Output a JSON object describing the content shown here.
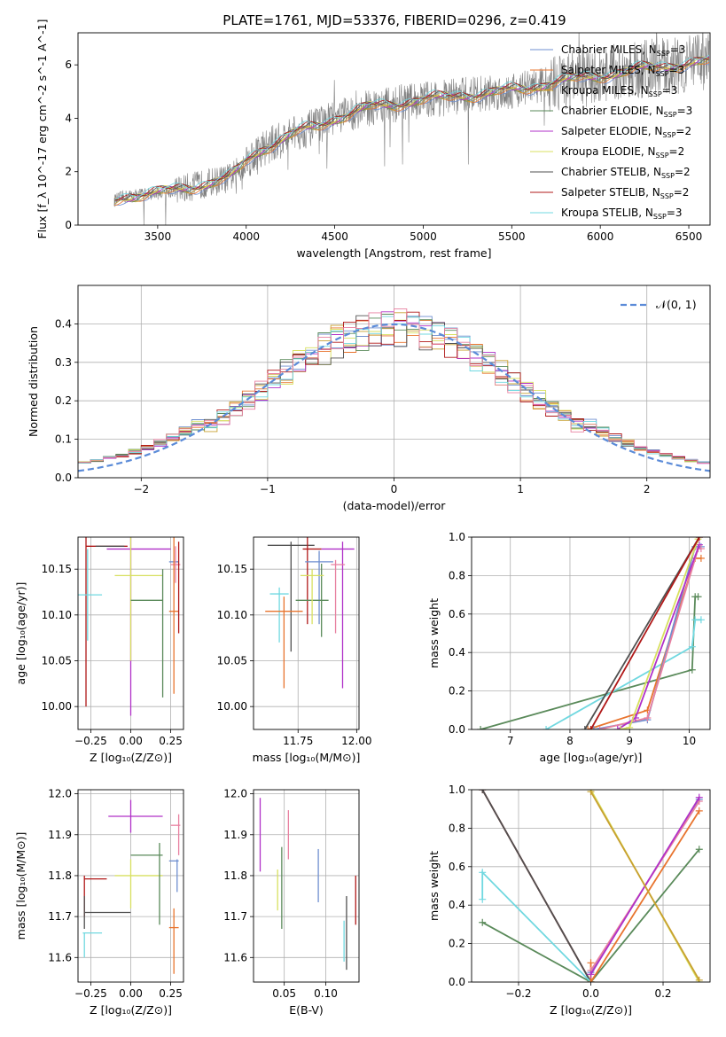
{
  "figure": {
    "title": "PLATE=1761, MJD=53376, FIBERID=0296, z=0.419"
  },
  "colors": {
    "Chabrier MILES": "#6f8fd0",
    "Salpeter MILES": "#e8742e",
    "Kroupa MILES": "#c8a030",
    "Chabrier ELODIE": "#5a8a5a",
    "Salpeter ELODIE": "#b030c8",
    "Kroupa ELODIE": "#d8e060",
    "Chabrier STELIB": "#505050",
    "Salpeter STELIB": "#b01818",
    "Kroupa STELIB": "#70d8e0",
    "pink": "#e880a0",
    "data": "#808080",
    "normal": "#5b8bd8"
  },
  "chart_data": [
    {
      "id": "spectrum",
      "type": "line",
      "title": "PLATE=1761, MJD=53376, FIBERID=0296, z=0.419",
      "xlabel": "wavelength [Angstrom, rest frame]",
      "ylabel": "Flux [f_λ 10^-17 erg cm^-2 s^-1 A^-1]",
      "xlim": [
        3050,
        6620
      ],
      "ylim": [
        0,
        7.2
      ],
      "xticks": [
        3500,
        4000,
        4500,
        5000,
        5500,
        6000,
        6500
      ],
      "yticks": [
        0,
        2,
        4,
        6
      ],
      "legend_position": "right",
      "legend": [
        {
          "label": "Chabrier MILES, N_SSP=3",
          "color": "#6f8fd0"
        },
        {
          "label": "Salpeter MILES, N_SSP=3",
          "color": "#e8742e"
        },
        {
          "label": "Kroupa MILES, N_SSP=3",
          "color": "#c8a030"
        },
        {
          "label": "Chabrier ELODIE, N_SSP=3",
          "color": "#5a8a5a"
        },
        {
          "label": "Salpeter ELODIE, N_SSP=2",
          "color": "#b030c8"
        },
        {
          "label": "Kroupa ELODIE, N_SSP=2",
          "color": "#d8e060"
        },
        {
          "label": "Chabrier STELIB, N_SSP=2",
          "color": "#505050"
        },
        {
          "label": "Salpeter STELIB, N_SSP=2",
          "color": "#b01818"
        },
        {
          "label": "Kroupa STELIB, N_SSP=3",
          "color": "#70d8e0"
        }
      ],
      "continuum": {
        "x": [
          3250,
          3300,
          3400,
          3500,
          3600,
          3700,
          3800,
          3900,
          3950,
          4000,
          4100,
          4200,
          4300,
          4400,
          4500,
          4600,
          4700,
          4800,
          4900,
          5000,
          5100,
          5200,
          5300,
          5400,
          5500,
          5600,
          5700,
          5800,
          5900,
          6000,
          6100,
          6200,
          6300,
          6400,
          6500,
          6600
        ],
        "y": [
          0.9,
          1.05,
          1.15,
          1.2,
          1.3,
          1.45,
          1.6,
          1.75,
          2.0,
          2.4,
          2.9,
          3.2,
          3.5,
          3.7,
          4.0,
          4.2,
          4.4,
          4.5,
          4.6,
          4.7,
          4.75,
          4.85,
          4.9,
          4.95,
          5.05,
          5.15,
          5.3,
          5.4,
          5.5,
          5.6,
          5.7,
          5.8,
          5.9,
          6.0,
          6.05,
          6.1
        ]
      }
    },
    {
      "id": "residuals",
      "type": "line",
      "xlabel": "(data-model)/error",
      "ylabel": "Normed distribution",
      "xlim": [
        -2.5,
        2.5
      ],
      "ylim": [
        0,
        0.5
      ],
      "xticks": [
        -2,
        -1,
        0,
        1,
        2
      ],
      "yticks": [
        0.0,
        0.1,
        0.2,
        0.3,
        0.4
      ],
      "grid": true,
      "legend_position": "top-right",
      "legend": [
        {
          "label": "𝒩(0, 1)",
          "color": "#5b8bd8"
        }
      ]
    },
    {
      "id": "age-vs-Z",
      "type": "scatter",
      "xlabel": "Z [log10(Z/Z⊙)]",
      "ylabel": "age  [log10(age/yr)]",
      "xlim": [
        -0.33,
        0.33
      ],
      "ylim": [
        9.975,
        10.185
      ],
      "xticks": [
        -0.25,
        0.0,
        0.25
      ],
      "yticks": [
        10.0,
        10.05,
        10.1,
        10.15
      ],
      "grid": true,
      "points": [
        {
          "x": -0.28,
          "y": 10.175,
          "xerr": 0.0,
          "yerr": 0.175,
          "color": "#b01818"
        },
        {
          "x": -0.15,
          "y": 10.175,
          "xerr": 0.13,
          "yerr": 0.0,
          "color": "#b01818"
        },
        {
          "x": -0.27,
          "y": 10.122,
          "xerr": 0.09,
          "yerr": 0.05,
          "color": "#70d8e0"
        },
        {
          "x": -0.13,
          "y": 10.175,
          "xerr": 0.09,
          "yerr": 0.0,
          "color": "#505050"
        },
        {
          "x": 0.05,
          "y": 10.172,
          "xerr": 0.2,
          "yerr": 0.0,
          "color": "#b030c8"
        },
        {
          "x": 0.0,
          "y": 10.12,
          "xerr": 0.0,
          "yerr": 0.13,
          "color": "#b030c8"
        },
        {
          "x": 0.05,
          "y": 10.143,
          "xerr": 0.15,
          "yerr": 0.0,
          "color": "#d8e060"
        },
        {
          "x": 0.0,
          "y": 10.12,
          "xerr": 0.0,
          "yerr": 0.07,
          "color": "#d8e060"
        },
        {
          "x": 0.1,
          "y": 10.116,
          "xerr": 0.1,
          "yerr": 0.0,
          "color": "#5a8a5a"
        },
        {
          "x": 0.2,
          "y": 10.08,
          "xerr": 0.0,
          "yerr": 0.07,
          "color": "#5a8a5a"
        },
        {
          "x": 0.27,
          "y": 10.158,
          "xerr": 0.03,
          "yerr": 0.0,
          "color": "#6f8fd0"
        },
        {
          "x": 0.28,
          "y": 10.155,
          "xerr": 0.03,
          "yerr": 0.02,
          "color": "#e880a0"
        },
        {
          "x": 0.27,
          "y": 10.104,
          "xerr": 0.03,
          "yerr": 0.09,
          "color": "#e8742e"
        },
        {
          "x": 0.3,
          "y": 10.13,
          "xerr": 0.0,
          "yerr": 0.05,
          "color": "#b01818"
        }
      ]
    },
    {
      "id": "age-vs-mass",
      "type": "scatter",
      "xlabel": "mass [log10(M/M⊙)]",
      "xlim": [
        11.56,
        12.01
      ],
      "ylim": [
        9.975,
        10.185
      ],
      "xticks": [
        11.75,
        12.0
      ],
      "yticks": [
        10.0,
        10.05,
        10.1,
        10.15
      ],
      "grid": true,
      "points": [
        {
          "x": 11.72,
          "y": 10.176,
          "xerr": 0.1,
          "yerr": 0.0,
          "color": "#505050"
        },
        {
          "x": 11.72,
          "y": 10.12,
          "xerr": 0.0,
          "yerr": 0.06,
          "color": "#505050"
        },
        {
          "x": 11.81,
          "y": 10.172,
          "xerr": 0.04,
          "yerr": 0.0,
          "color": "#b01818"
        },
        {
          "x": 11.79,
          "y": 10.14,
          "xerr": 0.0,
          "yerr": 0.05,
          "color": "#b01818"
        },
        {
          "x": 11.67,
          "y": 10.123,
          "xerr": 0.04,
          "yerr": 0.0,
          "color": "#70d8e0"
        },
        {
          "x": 11.67,
          "y": 10.1,
          "xerr": 0.0,
          "yerr": 0.03,
          "color": "#70d8e0"
        },
        {
          "x": 11.84,
          "y": 10.158,
          "xerr": 0.06,
          "yerr": 0.0,
          "color": "#6f8fd0"
        },
        {
          "x": 11.84,
          "y": 10.13,
          "xerr": 0.0,
          "yerr": 0.04,
          "color": "#6f8fd0"
        },
        {
          "x": 11.69,
          "y": 10.104,
          "xerr": 0.08,
          "yerr": 0.0,
          "color": "#e8742e"
        },
        {
          "x": 11.69,
          "y": 10.07,
          "xerr": 0.0,
          "yerr": 0.05,
          "color": "#e8742e"
        },
        {
          "x": 11.92,
          "y": 10.172,
          "xerr": 0.07,
          "yerr": 0.0,
          "color": "#b030c8"
        },
        {
          "x": 11.94,
          "y": 10.1,
          "xerr": 0.0,
          "yerr": 0.08,
          "color": "#b030c8"
        },
        {
          "x": 11.81,
          "y": 10.116,
          "xerr": 0.07,
          "yerr": 0.0,
          "color": "#5a8a5a"
        },
        {
          "x": 11.85,
          "y": 10.116,
          "xerr": 0.0,
          "yerr": 0.04,
          "color": "#5a8a5a"
        },
        {
          "x": 11.81,
          "y": 10.143,
          "xerr": 0.05,
          "yerr": 0.0,
          "color": "#d8e060"
        },
        {
          "x": 11.81,
          "y": 10.12,
          "xerr": 0.0,
          "yerr": 0.03,
          "color": "#d8e060"
        },
        {
          "x": 11.92,
          "y": 10.155,
          "xerr": 0.03,
          "yerr": 0.0,
          "color": "#e880a0"
        },
        {
          "x": 11.91,
          "y": 10.12,
          "xerr": 0.0,
          "yerr": 0.04,
          "color": "#e880a0"
        }
      ]
    },
    {
      "id": "massweight-vs-age",
      "type": "line",
      "xlabel": "age  [log10(age/yr)]",
      "ylabel": "mass weight",
      "xlim": [
        6.35,
        10.35
      ],
      "ylim": [
        0,
        1.0
      ],
      "xticks": [
        7,
        8,
        9,
        10
      ],
      "yticks": [
        0.0,
        0.2,
        0.4,
        0.6,
        0.8,
        1.0
      ],
      "grid": true,
      "series": [
        {
          "color": "#5a8a5a",
          "x": [
            6.5,
            10.05,
            10.1,
            10.15
          ],
          "y": [
            0.0,
            0.31,
            0.69,
            0.69
          ]
        },
        {
          "color": "#70d8e0",
          "x": [
            7.6,
            10.05,
            10.1,
            10.2
          ],
          "y": [
            0.0,
            0.43,
            0.57,
            0.57
          ]
        },
        {
          "color": "#e8742e",
          "x": [
            8.3,
            9.3,
            10.1,
            10.2
          ],
          "y": [
            0.0,
            0.1,
            0.89,
            0.89
          ]
        },
        {
          "color": "#6f8fd0",
          "x": [
            8.4,
            9.3,
            10.1,
            10.2
          ],
          "y": [
            0.0,
            0.05,
            0.95,
            0.95
          ]
        },
        {
          "color": "#e880a0",
          "x": [
            8.5,
            9.3,
            10.15,
            10.2
          ],
          "y": [
            0.0,
            0.06,
            0.94,
            0.94
          ]
        },
        {
          "color": "#b030c8",
          "x": [
            8.8,
            9.1,
            10.17
          ],
          "y": [
            0.0,
            0.06,
            0.96
          ]
        },
        {
          "color": "#d8e060",
          "x": [
            8.85,
            9.0,
            10.15
          ],
          "y": [
            0.0,
            0.01,
            0.99
          ]
        },
        {
          "color": "#505050",
          "x": [
            8.25,
            10.17
          ],
          "y": [
            0.0,
            1.0
          ]
        },
        {
          "color": "#b01818",
          "x": [
            8.35,
            10.17
          ],
          "y": [
            0.0,
            1.0
          ]
        }
      ]
    },
    {
      "id": "mass-vs-Z",
      "type": "scatter",
      "xlabel": "Z [log10(Z/Z⊙)]",
      "ylabel": "mass [log10(M/M⊙)]",
      "xlim": [
        -0.33,
        0.33
      ],
      "ylim": [
        11.54,
        12.01
      ],
      "xticks": [
        -0.25,
        0.0,
        0.25
      ],
      "yticks": [
        11.6,
        11.7,
        11.8,
        11.9,
        12.0
      ],
      "grid": true,
      "points": [
        {
          "x": -0.22,
          "y": 11.792,
          "xerr": 0.07,
          "yerr": 0.0,
          "color": "#b01818"
        },
        {
          "x": -0.29,
          "y": 11.75,
          "xerr": 0.0,
          "yerr": 0.05,
          "color": "#b01818"
        },
        {
          "x": -0.145,
          "y": 11.71,
          "xerr": 0.145,
          "yerr": 0.0,
          "color": "#505050"
        },
        {
          "x": -0.29,
          "y": 11.71,
          "xerr": 0.0,
          "yerr": 0.04,
          "color": "#505050"
        },
        {
          "x": -0.24,
          "y": 11.66,
          "xerr": 0.06,
          "yerr": 0.0,
          "color": "#70d8e0"
        },
        {
          "x": -0.29,
          "y": 11.63,
          "xerr": 0.0,
          "yerr": 0.03,
          "color": "#70d8e0"
        },
        {
          "x": 0.03,
          "y": 11.945,
          "xerr": 0.17,
          "yerr": 0.0,
          "color": "#b030c8"
        },
        {
          "x": 0.0,
          "y": 11.945,
          "xerr": 0.0,
          "yerr": 0.04,
          "color": "#b030c8"
        },
        {
          "x": 0.05,
          "y": 11.8,
          "xerr": 0.15,
          "yerr": 0.0,
          "color": "#d8e060"
        },
        {
          "x": 0.0,
          "y": 11.78,
          "xerr": 0.0,
          "yerr": 0.06,
          "color": "#d8e060"
        },
        {
          "x": 0.1,
          "y": 11.85,
          "xerr": 0.1,
          "yerr": 0.0,
          "color": "#5a8a5a"
        },
        {
          "x": 0.18,
          "y": 11.78,
          "xerr": 0.0,
          "yerr": 0.1,
          "color": "#5a8a5a"
        },
        {
          "x": 0.27,
          "y": 11.836,
          "xerr": 0.03,
          "yerr": 0.0,
          "color": "#6f8fd0"
        },
        {
          "x": 0.29,
          "y": 11.8,
          "xerr": 0.0,
          "yerr": 0.04,
          "color": "#6f8fd0"
        },
        {
          "x": 0.28,
          "y": 11.923,
          "xerr": 0.03,
          "yerr": 0.0,
          "color": "#e880a0"
        },
        {
          "x": 0.3,
          "y": 11.9,
          "xerr": 0.0,
          "yerr": 0.05,
          "color": "#e880a0"
        },
        {
          "x": 0.27,
          "y": 11.673,
          "xerr": 0.03,
          "yerr": 0.0,
          "color": "#e8742e"
        },
        {
          "x": 0.27,
          "y": 11.64,
          "xerr": 0.0,
          "yerr": 0.08,
          "color": "#e8742e"
        }
      ]
    },
    {
      "id": "mass-vs-EBV",
      "type": "scatter",
      "xlabel": "E(B-V)",
      "xlim": [
        0.013,
        0.14
      ],
      "ylim": [
        11.54,
        12.01
      ],
      "xticks": [
        0.05,
        0.1
      ],
      "yticks": [
        11.6,
        11.7,
        11.8,
        11.9,
        12.0
      ],
      "grid": true,
      "points": [
        {
          "x": 0.021,
          "y": 11.9,
          "xerr": 0.0,
          "yerr": 0.09,
          "color": "#b030c8"
        },
        {
          "x": 0.042,
          "y": 11.765,
          "xerr": 0.0,
          "yerr": 0.05,
          "color": "#d8e060"
        },
        {
          "x": 0.047,
          "y": 11.77,
          "xerr": 0.0,
          "yerr": 0.1,
          "color": "#5a8a5a"
        },
        {
          "x": 0.055,
          "y": 11.9,
          "xerr": 0.0,
          "yerr": 0.06,
          "color": "#e880a0"
        },
        {
          "x": 0.091,
          "y": 11.8,
          "xerr": 0.0,
          "yerr": 0.065,
          "color": "#6f8fd0"
        },
        {
          "x": 0.122,
          "y": 11.64,
          "xerr": 0.0,
          "yerr": 0.05,
          "color": "#70d8e0"
        },
        {
          "x": 0.125,
          "y": 11.66,
          "xerr": 0.0,
          "yerr": 0.09,
          "color": "#505050"
        },
        {
          "x": 0.136,
          "y": 11.74,
          "xerr": 0.0,
          "yerr": 0.06,
          "color": "#b01818"
        }
      ]
    },
    {
      "id": "massweight-vs-Z",
      "type": "line",
      "xlabel": "Z [log10(Z/Z⊙)]",
      "ylabel": "mass weight",
      "xlim": [
        -0.33,
        0.33
      ],
      "ylim": [
        0,
        1.0
      ],
      "xticks": [
        -0.2,
        0.0,
        0.2
      ],
      "yticks": [
        0.0,
        0.2,
        0.4,
        0.6,
        0.8,
        1.0
      ],
      "grid": true,
      "series": [
        {
          "color": "#b01818",
          "x": [
            -0.3,
            0.0
          ],
          "y": [
            1.0,
            0.0
          ]
        },
        {
          "color": "#505050",
          "x": [
            -0.3,
            0.0
          ],
          "y": [
            1.0,
            0.0
          ]
        },
        {
          "color": "#5a8a5a",
          "x": [
            -0.3,
            0.0,
            0.3
          ],
          "y": [
            0.31,
            0.0,
            0.69
          ]
        },
        {
          "color": "#70d8e0",
          "x": [
            -0.3,
            -0.3,
            0.0
          ],
          "y": [
            0.43,
            0.57,
            0.0
          ]
        },
        {
          "color": "#e8742e",
          "x": [
            0.0,
            0.0,
            0.3
          ],
          "y": [
            0.1,
            0.0,
            0.89
          ]
        },
        {
          "color": "#6f8fd0",
          "x": [
            0.0,
            0.3
          ],
          "y": [
            0.05,
            0.95
          ]
        },
        {
          "color": "#e880a0",
          "x": [
            0.0,
            0.3
          ],
          "y": [
            0.06,
            0.94
          ]
        },
        {
          "color": "#b030c8",
          "x": [
            0.0,
            0.3
          ],
          "y": [
            0.04,
            0.96
          ]
        },
        {
          "color": "#d8e060",
          "x": [
            0.0,
            0.3
          ],
          "y": [
            1.0,
            0.0
          ]
        },
        {
          "color": "#c8a030",
          "x": [
            0.0,
            0.3
          ],
          "y": [
            0.99,
            0.01
          ]
        }
      ]
    }
  ]
}
